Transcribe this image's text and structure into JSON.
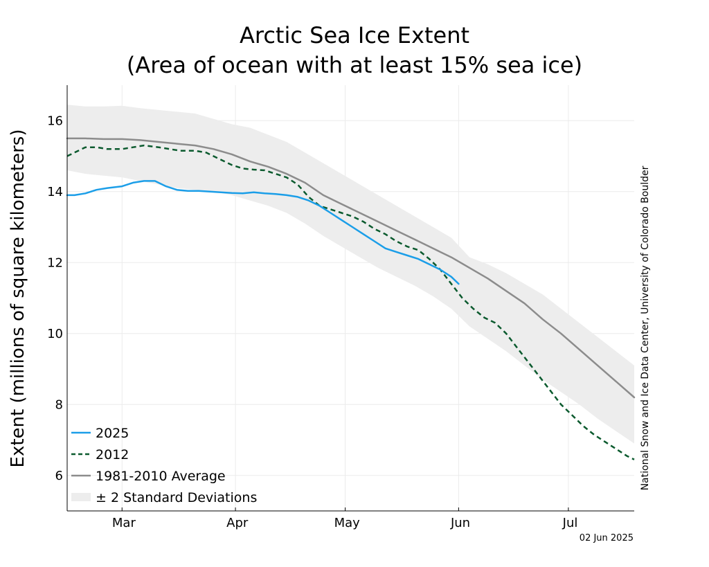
{
  "chart_data": {
    "type": "line",
    "title": [
      "Arctic Sea Ice Extent",
      "(Area of ocean with at least 15% sea ice)"
    ],
    "ylabel": "Extent (millions of square kilometers)",
    "xlabel": "",
    "ylim": [
      5,
      17
    ],
    "xlim": [
      45,
      200
    ],
    "yticks": [
      6,
      8,
      10,
      12,
      14,
      16
    ],
    "month_boundaries": [
      60,
      91,
      121,
      152,
      182
    ],
    "month_labels": [
      {
        "label": "Mar",
        "x": 60.5
      },
      {
        "label": "Apr",
        "x": 91.5
      },
      {
        "label": "May",
        "x": 121.5
      },
      {
        "label": "Jun",
        "x": 152.5
      },
      {
        "label": "Jul",
        "x": 182.5
      }
    ],
    "grid": true,
    "legend_position": "bottom-left",
    "date_stamp": "02 Jun 2025",
    "credit": "National Snow and Ice Data Center, University of Colorado Boulder",
    "colors": {
      "y2025": "#1b9ee8",
      "y2012": "#0b5a2e",
      "average": "#8c8c8c",
      "band": "#ededed"
    },
    "legend": [
      {
        "key": "y2025",
        "label": "2025",
        "style": "solid"
      },
      {
        "key": "y2012",
        "label": "2012",
        "style": "dashed"
      },
      {
        "key": "average",
        "label": "1981-2010 Average",
        "style": "solid"
      },
      {
        "key": "band",
        "label": "± 2 Standard Deviations",
        "style": "band"
      }
    ],
    "series": [
      {
        "key": "band",
        "x": [
          45,
          50,
          55,
          60,
          65,
          70,
          75,
          80,
          85,
          90,
          95,
          100,
          105,
          110,
          115,
          120,
          125,
          130,
          135,
          140,
          145,
          150,
          155,
          160,
          165,
          170,
          175,
          180,
          185,
          190,
          195,
          200
        ],
        "upper": [
          16.45,
          16.4,
          16.4,
          16.42,
          16.35,
          16.3,
          16.25,
          16.2,
          16.05,
          15.9,
          15.8,
          15.6,
          15.4,
          15.1,
          14.8,
          14.5,
          14.2,
          13.9,
          13.6,
          13.3,
          13.0,
          12.7,
          12.15,
          11.95,
          11.7,
          11.4,
          11.1,
          10.7,
          10.3,
          9.9,
          9.5,
          9.1
        ],
        "lower": [
          14.6,
          14.5,
          14.45,
          14.4,
          14.3,
          14.2,
          14.1,
          14.05,
          14.0,
          13.9,
          13.75,
          13.6,
          13.4,
          13.1,
          12.75,
          12.45,
          12.15,
          11.85,
          11.6,
          11.35,
          11.05,
          10.7,
          10.2,
          9.85,
          9.5,
          9.1,
          8.7,
          8.35,
          8.0,
          7.6,
          7.25,
          6.9
        ]
      },
      {
        "key": "average",
        "name": "1981-2010 Average",
        "x": [
          45,
          50,
          55,
          60,
          65,
          70,
          75,
          80,
          85,
          90,
          95,
          100,
          105,
          110,
          115,
          120,
          125,
          130,
          135,
          140,
          145,
          150,
          155,
          160,
          165,
          170,
          175,
          180,
          185,
          190,
          195,
          200
        ],
        "values": [
          15.5,
          15.5,
          15.48,
          15.48,
          15.45,
          15.4,
          15.35,
          15.3,
          15.2,
          15.05,
          14.85,
          14.7,
          14.5,
          14.25,
          13.9,
          13.65,
          13.4,
          13.15,
          12.9,
          12.65,
          12.4,
          12.15,
          11.85,
          11.55,
          11.2,
          10.85,
          10.4,
          10.0,
          9.55,
          9.1,
          8.65,
          8.2
        ]
      },
      {
        "key": "y2012",
        "name": "2012",
        "x": [
          45,
          47,
          50,
          53,
          56,
          60,
          63,
          66,
          70,
          73,
          76,
          80,
          83,
          86,
          90,
          93,
          96,
          99,
          102,
          105,
          108,
          111,
          114,
          117,
          120,
          123,
          126,
          129,
          132,
          135,
          138,
          141,
          144,
          147,
          150,
          153,
          156,
          159,
          162,
          165,
          168,
          171,
          174,
          177,
          180,
          183,
          186,
          189,
          192,
          195,
          198,
          200
        ],
        "values": [
          15.0,
          15.1,
          15.25,
          15.25,
          15.2,
          15.2,
          15.25,
          15.3,
          15.25,
          15.2,
          15.15,
          15.15,
          15.1,
          14.95,
          14.75,
          14.65,
          14.62,
          14.6,
          14.5,
          14.4,
          14.2,
          13.85,
          13.6,
          13.5,
          13.4,
          13.3,
          13.15,
          12.95,
          12.8,
          12.6,
          12.45,
          12.35,
          12.1,
          11.8,
          11.4,
          11.0,
          10.7,
          10.45,
          10.3,
          10.0,
          9.6,
          9.2,
          8.8,
          8.4,
          8.0,
          7.7,
          7.4,
          7.15,
          6.95,
          6.75,
          6.55,
          6.45
        ]
      },
      {
        "key": "y2025",
        "name": "2025",
        "x": [
          45,
          47,
          50,
          53,
          56,
          60,
          63,
          66,
          69,
          72,
          75,
          78,
          81,
          84,
          87,
          90,
          93,
          96,
          99,
          102,
          105,
          108,
          111,
          114,
          117,
          120,
          123,
          126,
          129,
          132,
          135,
          138,
          141,
          144,
          147,
          150,
          152
        ],
        "values": [
          13.9,
          13.9,
          13.95,
          14.05,
          14.1,
          14.15,
          14.25,
          14.3,
          14.3,
          14.15,
          14.05,
          14.02,
          14.02,
          14.0,
          13.98,
          13.96,
          13.95,
          13.98,
          13.95,
          13.93,
          13.9,
          13.85,
          13.75,
          13.6,
          13.4,
          13.2,
          13.0,
          12.8,
          12.6,
          12.4,
          12.3,
          12.2,
          12.1,
          11.95,
          11.8,
          11.6,
          11.4
        ]
      }
    ]
  }
}
